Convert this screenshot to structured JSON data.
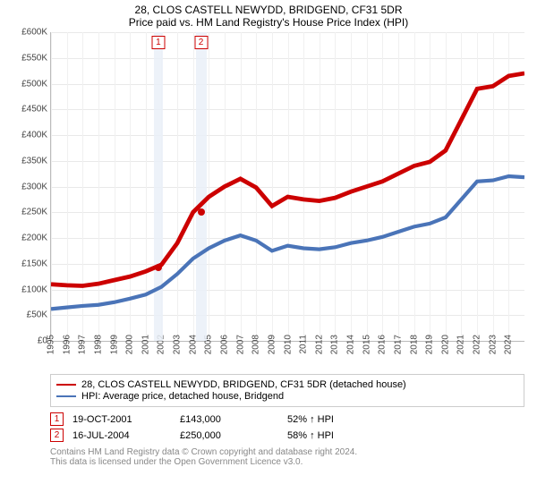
{
  "title": "28, CLOS CASTELL NEWYDD, BRIDGEND, CF31 5DR",
  "subtitle": "Price paid vs. HM Land Registry's House Price Index (HPI)",
  "chart": {
    "type": "line",
    "x_years": [
      1995,
      1996,
      1997,
      1998,
      1999,
      2000,
      2001,
      2002,
      2003,
      2004,
      2005,
      2006,
      2007,
      2008,
      2009,
      2010,
      2011,
      2012,
      2013,
      2014,
      2015,
      2016,
      2017,
      2018,
      2019,
      2020,
      2021,
      2022,
      2023,
      2024
    ],
    "x_min": 1995,
    "x_max": 2025,
    "ylim": [
      0,
      600000
    ],
    "ytick_step": 50000,
    "ytick_labels": [
      "£0",
      "£50K",
      "£100K",
      "£150K",
      "£200K",
      "£250K",
      "£300K",
      "£350K",
      "£400K",
      "£450K",
      "£500K",
      "£550K",
      "£600K"
    ],
    "grid_color": "#e9e9e9",
    "background_color": "#ffffff",
    "title_fontsize": 12,
    "axis_fontsize": 10,
    "bands": [
      {
        "from": 2001.5,
        "to": 2002.1,
        "color": "#eaf0f8"
      },
      {
        "from": 2004.2,
        "to": 2004.85,
        "color": "#eaf0f8"
      }
    ],
    "markers": [
      {
        "id": "1",
        "x": 2001.8,
        "dot_y": 143000,
        "dot_color": "#cc0000"
      },
      {
        "id": "2",
        "x": 2004.5,
        "dot_y": 250000,
        "dot_color": "#cc0000"
      }
    ],
    "series": [
      {
        "name": "28, CLOS CASTELL NEWYDD, BRIDGEND, CF31 5DR (detached house)",
        "color": "#cc0000",
        "width": 1.6,
        "points": [
          [
            1995,
            110000
          ],
          [
            1996,
            108000
          ],
          [
            1997,
            107000
          ],
          [
            1998,
            111000
          ],
          [
            1999,
            118000
          ],
          [
            2000,
            125000
          ],
          [
            2001,
            135000
          ],
          [
            2002,
            148000
          ],
          [
            2003,
            190000
          ],
          [
            2004,
            250000
          ],
          [
            2005,
            280000
          ],
          [
            2006,
            300000
          ],
          [
            2007,
            315000
          ],
          [
            2008,
            298000
          ],
          [
            2009,
            262000
          ],
          [
            2010,
            280000
          ],
          [
            2011,
            275000
          ],
          [
            2012,
            272000
          ],
          [
            2013,
            278000
          ],
          [
            2014,
            290000
          ],
          [
            2015,
            300000
          ],
          [
            2016,
            310000
          ],
          [
            2017,
            325000
          ],
          [
            2018,
            340000
          ],
          [
            2019,
            348000
          ],
          [
            2020,
            370000
          ],
          [
            2021,
            430000
          ],
          [
            2022,
            490000
          ],
          [
            2023,
            495000
          ],
          [
            2024,
            515000
          ],
          [
            2025,
            520000
          ]
        ]
      },
      {
        "name": "HPI: Average price, detached house, Bridgend",
        "color": "#4a74b8",
        "width": 1.4,
        "points": [
          [
            1995,
            62000
          ],
          [
            1996,
            65000
          ],
          [
            1997,
            68000
          ],
          [
            1998,
            70000
          ],
          [
            1999,
            75000
          ],
          [
            2000,
            82000
          ],
          [
            2001,
            90000
          ],
          [
            2002,
            105000
          ],
          [
            2003,
            130000
          ],
          [
            2004,
            160000
          ],
          [
            2005,
            180000
          ],
          [
            2006,
            195000
          ],
          [
            2007,
            205000
          ],
          [
            2008,
            195000
          ],
          [
            2009,
            175000
          ],
          [
            2010,
            185000
          ],
          [
            2011,
            180000
          ],
          [
            2012,
            178000
          ],
          [
            2013,
            182000
          ],
          [
            2014,
            190000
          ],
          [
            2015,
            195000
          ],
          [
            2016,
            202000
          ],
          [
            2017,
            212000
          ],
          [
            2018,
            222000
          ],
          [
            2019,
            228000
          ],
          [
            2020,
            240000
          ],
          [
            2021,
            275000
          ],
          [
            2022,
            310000
          ],
          [
            2023,
            312000
          ],
          [
            2024,
            320000
          ],
          [
            2025,
            318000
          ]
        ]
      }
    ]
  },
  "legend": {
    "items": [
      {
        "color": "#cc0000",
        "label": "28, CLOS CASTELL NEWYDD, BRIDGEND, CF31 5DR (detached house)"
      },
      {
        "color": "#4a74b8",
        "label": "HPI: Average price, detached house, Bridgend"
      }
    ]
  },
  "events": [
    {
      "id": "1",
      "date": "19-OCT-2001",
      "price": "£143,000",
      "delta": "52% ↑ HPI"
    },
    {
      "id": "2",
      "date": "16-JUL-2004",
      "price": "£250,000",
      "delta": "58% ↑ HPI"
    }
  ],
  "footer": {
    "line1": "Contains HM Land Registry data © Crown copyright and database right 2024.",
    "line2": "This data is licensed under the Open Government Licence v3.0."
  }
}
